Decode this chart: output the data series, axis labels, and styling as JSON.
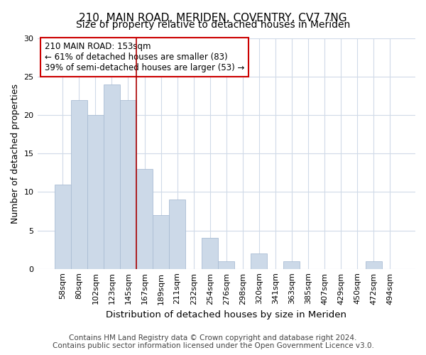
{
  "title": "210, MAIN ROAD, MERIDEN, COVENTRY, CV7 7NG",
  "subtitle": "Size of property relative to detached houses in Meriden",
  "xlabel": "Distribution of detached houses by size in Meriden",
  "ylabel": "Number of detached properties",
  "categories": [
    "58sqm",
    "80sqm",
    "102sqm",
    "123sqm",
    "145sqm",
    "167sqm",
    "189sqm",
    "211sqm",
    "232sqm",
    "254sqm",
    "276sqm",
    "298sqm",
    "320sqm",
    "341sqm",
    "363sqm",
    "385sqm",
    "407sqm",
    "429sqm",
    "450sqm",
    "472sqm",
    "494sqm"
  ],
  "values": [
    11,
    22,
    20,
    24,
    22,
    13,
    7,
    9,
    0,
    4,
    1,
    0,
    2,
    0,
    1,
    0,
    0,
    0,
    0,
    1,
    0
  ],
  "bar_color": "#ccd9e8",
  "bar_edgecolor": "#aabdd4",
  "vline_x": 4.5,
  "vline_color": "#aa0000",
  "annotation_text": "210 MAIN ROAD: 153sqm\n← 61% of detached houses are smaller (83)\n39% of semi-detached houses are larger (53) →",
  "annotation_box_facecolor": "#ffffff",
  "annotation_box_edgecolor": "#cc0000",
  "ylim": [
    0,
    30
  ],
  "yticks": [
    0,
    5,
    10,
    15,
    20,
    25,
    30
  ],
  "footer": "Contains HM Land Registry data © Crown copyright and database right 2024.\nContains public sector information licensed under the Open Government Licence v3.0.",
  "bg_color": "#ffffff",
  "plot_bg_color": "#ffffff",
  "grid_color": "#d0dae8",
  "title_fontsize": 11,
  "subtitle_fontsize": 10,
  "xlabel_fontsize": 9.5,
  "ylabel_fontsize": 9,
  "tick_fontsize": 8,
  "annot_fontsize": 8.5,
  "footer_fontsize": 7.5
}
